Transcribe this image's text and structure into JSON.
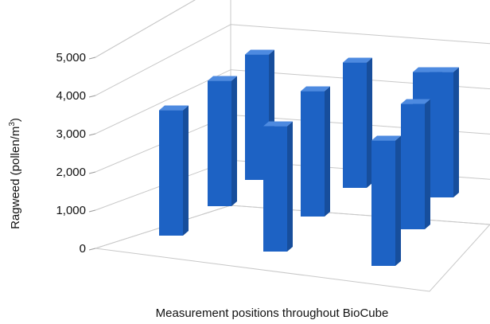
{
  "chart_data": {
    "type": "bar",
    "projection": "3d-grid",
    "xlabel": "Measurement positions throughout BioCube",
    "ylabel_text": "Ragweed (pollen/m",
    "ylabel_sup": "3",
    "ylabel_close": ")",
    "ylim": [
      0,
      5000
    ],
    "yticks": [
      {
        "value": 0,
        "label": "0"
      },
      {
        "value": 1000,
        "label": "1,000"
      },
      {
        "value": 2000,
        "label": "2,000"
      },
      {
        "value": 3000,
        "label": "3,000"
      },
      {
        "value": 4000,
        "label": "4,000"
      },
      {
        "value": 5000,
        "label": "5,000"
      }
    ],
    "grid": true,
    "bar_color": "#1d62c4",
    "points": [
      {
        "row": 3,
        "col": 1,
        "value": 4000
      },
      {
        "row": 3,
        "col": 2,
        "value": 4000
      },
      {
        "row": 3,
        "col": 3,
        "value": 4000
      },
      {
        "row": 3,
        "col": 4,
        "value": 4000
      },
      {
        "row": 3,
        "col": 5,
        "value": 4000
      },
      {
        "row": 2,
        "col": 1,
        "value": 4000
      },
      {
        "row": 2,
        "col": 3,
        "value": 4000
      },
      {
        "row": 2,
        "col": 5,
        "value": 4000
      },
      {
        "row": 1,
        "col": 2,
        "value": 4000
      },
      {
        "row": 1,
        "col": 4,
        "value": 4000
      }
    ]
  }
}
